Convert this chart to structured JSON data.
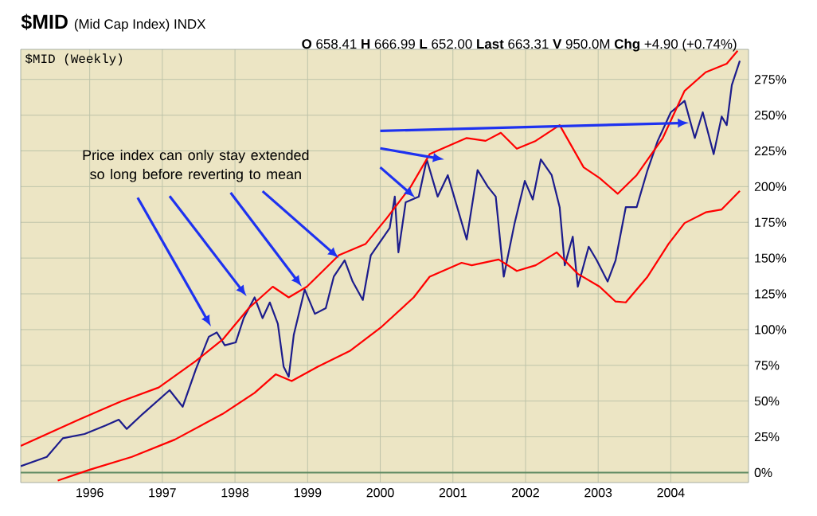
{
  "chart_data": {
    "type": "line",
    "title": "$MID",
    "subtitle": "(Mid Cap Index) INDX",
    "annotations": [
      "**O** 658.41 **H** 666.99 **L** 652.00 **Last** 663.31 **V** 950.0M **Chg** +4.90 (+0.74%)",
      "$MID (Weekly)",
      "Price index can only stay extended so long before reverting to mean"
    ],
    "xlim": [
      1995.05,
      2005.07
    ],
    "xticks": [
      1996,
      1997,
      1998,
      1999,
      2000,
      2001,
      2002,
      2003,
      2004
    ],
    "ylim": [
      -7,
      296
    ],
    "yticks": [
      {
        "value": 0,
        "label": "0%"
      },
      {
        "value": 25,
        "label": "25%"
      },
      {
        "value": 50,
        "label": "50%"
      },
      {
        "value": 75,
        "label": "75%"
      },
      {
        "value": 100,
        "label": "100%"
      },
      {
        "value": 125,
        "label": "125%"
      },
      {
        "value": 150,
        "label": "150%"
      },
      {
        "value": 175,
        "label": "175%"
      },
      {
        "value": 200,
        "label": "200%"
      },
      {
        "value": 225,
        "label": "225%"
      },
      {
        "value": 250,
        "label": "250%"
      },
      {
        "value": 275,
        "label": "275%"
      }
    ],
    "grid": true,
    "marker": "none",
    "line_style": "solid",
    "ref_lines": [
      {
        "axis": "y",
        "value": 0,
        "color": "#5f8a62"
      }
    ],
    "series": [
      {
        "color": "#1c1c8c",
        "x": [
          1995.05,
          1995.41,
          1995.63,
          1995.93,
          1996.22,
          1996.4,
          1996.51,
          1996.73,
          1997.1,
          1997.28,
          1997.46,
          1997.64,
          1997.75,
          1997.86,
          1998.01,
          1998.12,
          1998.27,
          1998.38,
          1998.48,
          1998.59,
          1998.67,
          1998.74,
          1998.81,
          1998.96,
          1999.1,
          1999.25,
          1999.36,
          1999.51,
          1999.62,
          1999.76,
          1999.87,
          2000.02,
          2000.13,
          2000.2,
          2000.25,
          2000.35,
          2000.53,
          2000.64,
          2000.79,
          2000.93,
          2001.04,
          2001.19,
          2001.34,
          2001.48,
          2001.59,
          2001.7,
          2001.85,
          2001.99,
          2002.1,
          2002.21,
          2002.36,
          2002.47,
          2002.54,
          2002.65,
          2002.72,
          2002.87,
          2002.98,
          2003.13,
          2003.24,
          2003.38,
          2003.53,
          2003.68,
          2003.82,
          2004.0,
          2004.19,
          2004.33,
          2004.44,
          2004.59,
          2004.7,
          2004.77,
          2004.84,
          2004.95
        ],
        "values": [
          4.5,
          11,
          24,
          27,
          33,
          37,
          30.5,
          41,
          57.6,
          46,
          72,
          95,
          98,
          89,
          91,
          108,
          122.5,
          108,
          119,
          104,
          74,
          67,
          96.5,
          128,
          111,
          115,
          137,
          148.5,
          133.6,
          120.7,
          152,
          163,
          171,
          193,
          154,
          189,
          193,
          219,
          193,
          208,
          189,
          163,
          211.6,
          200,
          193,
          137,
          174.5,
          204,
          191,
          219,
          208,
          185.6,
          145,
          165,
          130,
          158,
          148.5,
          133.6,
          148.5,
          185.6,
          185.6,
          211.6,
          232,
          252,
          260,
          234,
          252,
          222.7,
          249,
          243,
          271,
          288
        ]
      },
      {
        "color": "#ff0000",
        "x": [
          1995.05,
          1995.85,
          1996.44,
          1996.95,
          1997.46,
          1997.83,
          1998.19,
          1998.52,
          1998.74,
          1998.99,
          1999.43,
          1999.8,
          2000.09,
          2000.42,
          2000.68,
          2001.19,
          2001.45,
          2001.66,
          2001.88,
          2002.14,
          2002.47,
          2002.8,
          2003.02,
          2003.27,
          2003.53,
          2003.89,
          2004.19,
          2004.48,
          2004.77,
          2004.92
        ],
        "values": [
          18.6,
          37,
          50,
          59.5,
          78,
          93,
          115,
          130,
          122.5,
          130,
          152,
          160,
          178,
          200,
          222.7,
          234,
          232,
          237.6,
          226.5,
          232,
          243,
          213.5,
          206,
          195,
          208,
          234,
          267,
          280,
          286,
          295
        ]
      },
      {
        "color": "#ff0000",
        "x": [
          1995.56,
          1996.0,
          1996.58,
          1997.17,
          1997.83,
          1998.27,
          1998.56,
          1998.78,
          1999.14,
          1999.58,
          2000.02,
          2000.46,
          2000.68,
          2001.12,
          2001.26,
          2001.63,
          2001.88,
          2002.14,
          2002.43,
          2002.72,
          2003.02,
          2003.24,
          2003.38,
          2003.68,
          2003.97,
          2004.19,
          2004.48,
          2004.7,
          2004.95
        ],
        "values": [
          -5.6,
          2,
          11,
          23,
          41,
          55.7,
          68.7,
          64,
          74,
          85,
          102,
          122.5,
          137,
          146.7,
          145,
          149,
          141,
          145,
          154,
          139,
          130,
          119.6,
          119,
          137,
          160,
          174.5,
          182,
          184,
          197
        ]
      }
    ]
  }
}
